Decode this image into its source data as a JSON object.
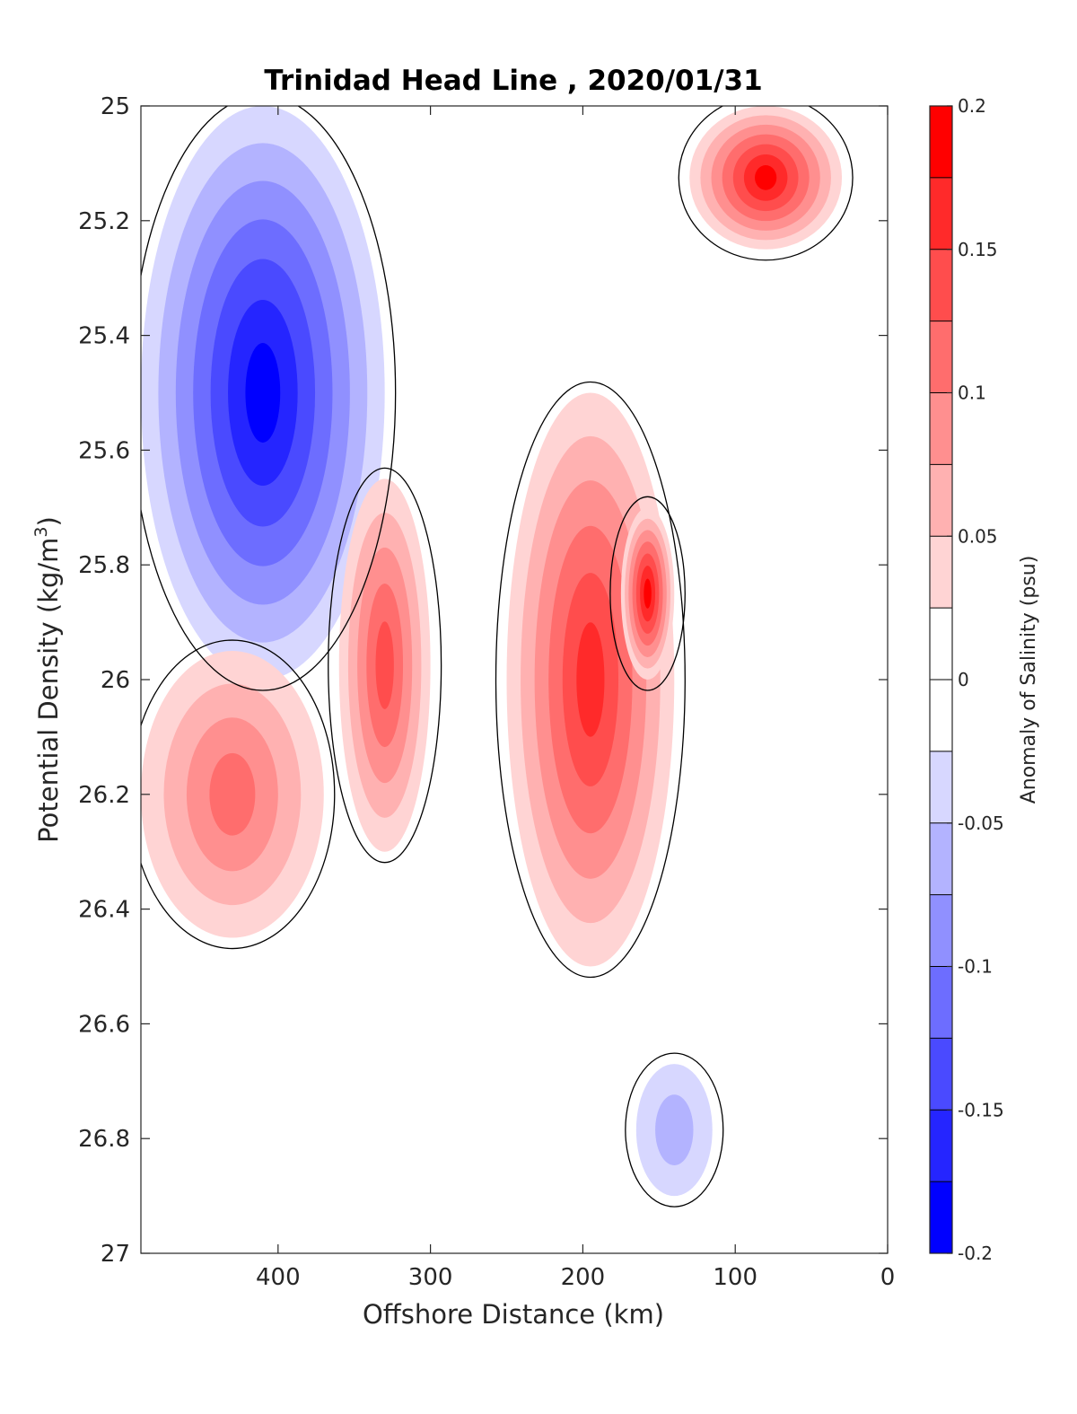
{
  "chart_data": {
    "type": "heatmap",
    "subtype": "filled-contour",
    "title": "Trinidad Head Line , 2020/01/31",
    "xlabel": "Offshore Distance (km)",
    "ylabel_main": "Potential Density (kg/m",
    "ylabel_sup": "3",
    "ylabel_close": ")",
    "x_ticks": [
      "400",
      "300",
      "200",
      "100",
      "0"
    ],
    "x_tick_values": [
      400,
      300,
      200,
      100,
      0
    ],
    "xlim": [
      490,
      0
    ],
    "x_reversed": true,
    "y_ticks": [
      "25",
      "25.2",
      "25.4",
      "25.6",
      "25.8",
      "26",
      "26.2",
      "26.4",
      "26.6",
      "26.8",
      "27"
    ],
    "y_tick_values": [
      25,
      25.2,
      25.4,
      25.6,
      25.8,
      26,
      26.2,
      26.4,
      26.6,
      26.8,
      27
    ],
    "ylim": [
      25,
      27
    ],
    "y_reversed": true,
    "colorbar": {
      "label": "Anomaly of Salinity (psu)",
      "ticks": [
        "0.2",
        "0.15",
        "0.1",
        "0.05",
        "0",
        "-0.05",
        "-0.1",
        "-0.15",
        "-0.2"
      ],
      "tick_values": [
        0.2,
        0.15,
        0.1,
        0.05,
        0,
        -0.05,
        -0.1,
        -0.15,
        -0.2
      ],
      "levels": [
        0.2,
        0.175,
        0.15,
        0.125,
        0.1,
        0.075,
        0.05,
        0.025,
        0,
        -0.025,
        -0.05,
        -0.075,
        -0.1,
        -0.125,
        -0.15,
        -0.175,
        -0.2
      ],
      "colors_top_to_bottom": [
        "#ff0000",
        "#ff2a2a",
        "#ff4d4d",
        "#ff6d6d",
        "#ff8f8f",
        "#ffb1b1",
        "#ffd4d4",
        "#ffffff",
        "#ffffff",
        "#d7d7ff",
        "#b3b3ff",
        "#9090ff",
        "#6d6dff",
        "#4a4aff",
        "#2525ff",
        "#0000ff"
      ]
    },
    "contour_lines": "zero anomaly contour drawn as thin black lines",
    "features": [
      {
        "sign": "negative",
        "peak": -0.175,
        "x_range": [
          490,
          330
        ],
        "y_range": [
          25,
          26.0
        ]
      },
      {
        "sign": "negative",
        "peak": -0.05,
        "x_range": [
          165,
          115
        ],
        "y_range": [
          26.67,
          26.9
        ]
      },
      {
        "sign": "positive",
        "peak": 0.1,
        "x_range": [
          490,
          370
        ],
        "y_range": [
          25.95,
          26.45
        ]
      },
      {
        "sign": "positive",
        "peak": 0.125,
        "x_range": [
          360,
          300
        ],
        "y_range": [
          25.65,
          26.3
        ]
      },
      {
        "sign": "positive",
        "peak": 0.15,
        "x_range": [
          250,
          140
        ],
        "y_range": [
          25.5,
          26.5
        ]
      },
      {
        "sign": "positive",
        "peak": 0.175,
        "x_range": [
          175,
          140
        ],
        "y_range": [
          25.7,
          26.0
        ]
      },
      {
        "sign": "positive",
        "peak": 0.175,
        "x_range": [
          130,
          30
        ],
        "y_range": [
          25,
          25.25
        ]
      }
    ]
  }
}
